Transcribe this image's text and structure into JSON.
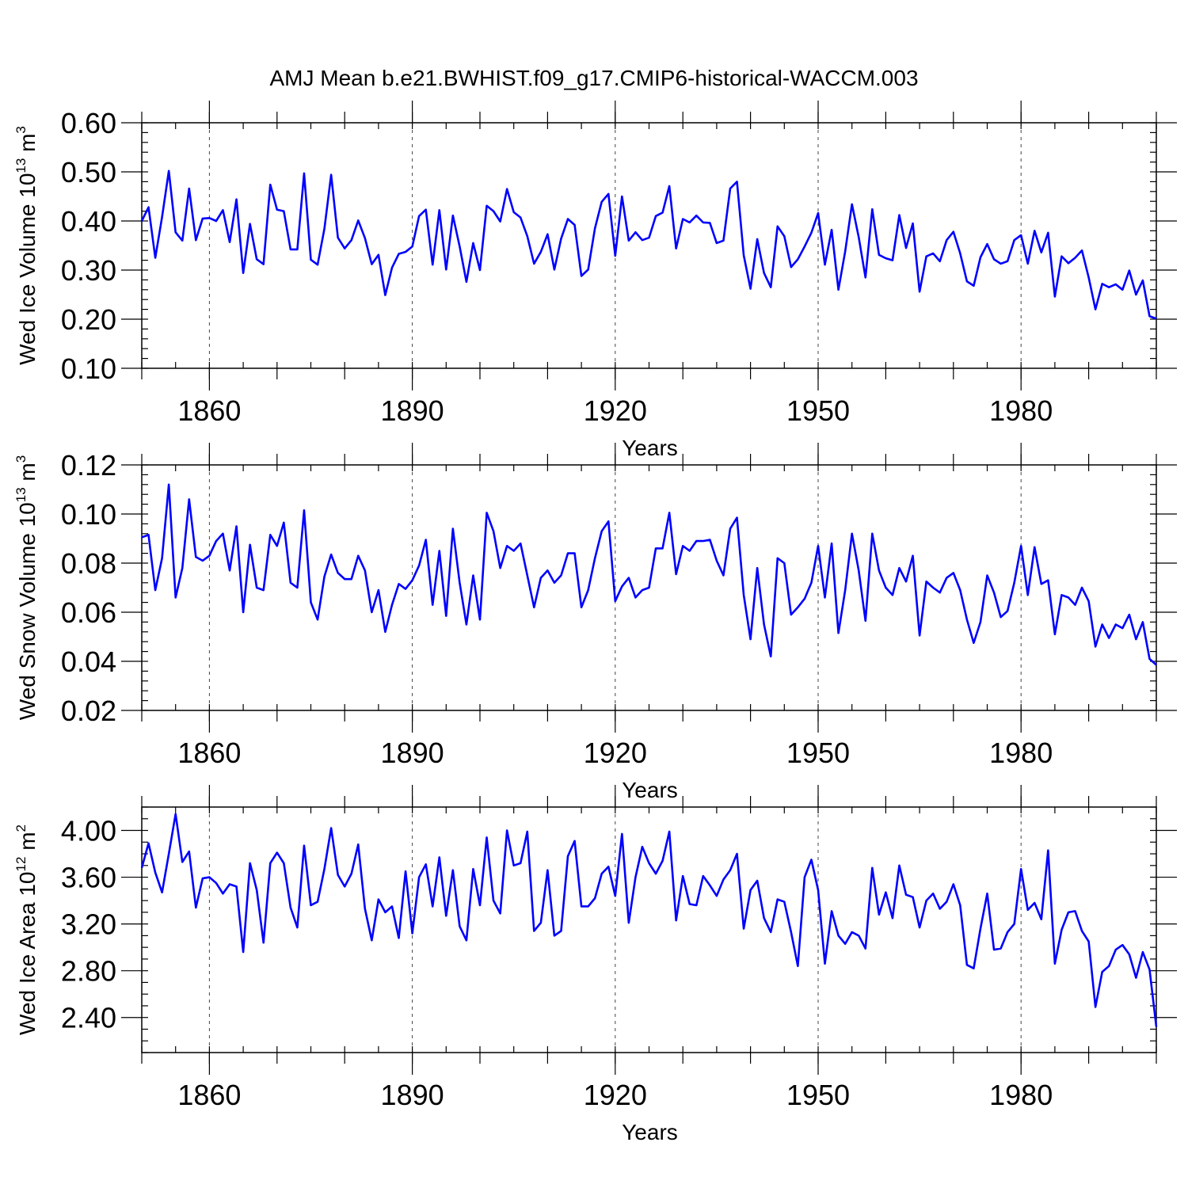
{
  "title": "AMJ Mean b.e21.BWHIST.f09_g17.CMIP6-historical-WACCM.003",
  "colors": {
    "series": "#0000ff",
    "axis": "#000000"
  },
  "chart_data": [
    {
      "type": "line",
      "title": "AMJ Mean b.e21.BWHIST.f09_g17.CMIP6-historical-WACCM.003",
      "xlabel": "Years",
      "ylabel_main": "Wed Ice Volume 10",
      "ylabel_exp": "13",
      "ylabel_unit": " m",
      "ylabel_unit_exp": "3",
      "xlim": [
        1850,
        2000
      ],
      "ylim": [
        0.1,
        0.6
      ],
      "x_ticks": [
        1860,
        1890,
        1920,
        1950,
        1980
      ],
      "y_ticks": [
        "0.10",
        "0.20",
        "0.30",
        "0.40",
        "0.50",
        "0.60"
      ],
      "y_tick_values": [
        0.1,
        0.2,
        0.3,
        0.4,
        0.5,
        0.6
      ],
      "y_minor_step": 0.02,
      "grid": "dashed verticals at major x ticks",
      "x_start": 1850,
      "series": [
        {
          "name": "Wed Ice Volume",
          "values": [
            0.4,
            0.428,
            0.325,
            0.408,
            0.502,
            0.377,
            0.36,
            0.466,
            0.361,
            0.405,
            0.406,
            0.4,
            0.422,
            0.357,
            0.444,
            0.294,
            0.394,
            0.322,
            0.312,
            0.474,
            0.423,
            0.42,
            0.342,
            0.342,
            0.497,
            0.321,
            0.311,
            0.384,
            0.494,
            0.366,
            0.344,
            0.361,
            0.401,
            0.365,
            0.312,
            0.331,
            0.249,
            0.305,
            0.333,
            0.337,
            0.348,
            0.41,
            0.423,
            0.311,
            0.422,
            0.301,
            0.411,
            0.348,
            0.276,
            0.355,
            0.3,
            0.431,
            0.42,
            0.399,
            0.465,
            0.418,
            0.407,
            0.369,
            0.313,
            0.337,
            0.373,
            0.301,
            0.364,
            0.404,
            0.392,
            0.288,
            0.301,
            0.385,
            0.439,
            0.455,
            0.329,
            0.45,
            0.36,
            0.377,
            0.361,
            0.366,
            0.41,
            0.417,
            0.471,
            0.344,
            0.404,
            0.397,
            0.411,
            0.397,
            0.396,
            0.355,
            0.36,
            0.466,
            0.48,
            0.33,
            0.262,
            0.363,
            0.294,
            0.265,
            0.389,
            0.369,
            0.306,
            0.322,
            0.348,
            0.376,
            0.416,
            0.311,
            0.382,
            0.26,
            0.338,
            0.434,
            0.367,
            0.285,
            0.424,
            0.331,
            0.324,
            0.32,
            0.412,
            0.345,
            0.395,
            0.256,
            0.328,
            0.334,
            0.318,
            0.361,
            0.378,
            0.334,
            0.277,
            0.268,
            0.326,
            0.353,
            0.322,
            0.313,
            0.318,
            0.361,
            0.371,
            0.313,
            0.38,
            0.336,
            0.376,
            0.246,
            0.328,
            0.314,
            0.325,
            0.34,
            0.285,
            0.22,
            0.272,
            0.265,
            0.271,
            0.26,
            0.299,
            0.25,
            0.279,
            0.206,
            0.201
          ]
        }
      ]
    },
    {
      "type": "line",
      "xlabel": "Years",
      "ylabel_main": "Wed Snow Volume 10",
      "ylabel_exp": "13",
      "ylabel_unit": " m",
      "ylabel_unit_exp": "3",
      "xlim": [
        1850,
        2000
      ],
      "ylim": [
        0.02,
        0.12
      ],
      "x_ticks": [
        1860,
        1890,
        1920,
        1950,
        1980
      ],
      "y_ticks": [
        "0.02",
        "0.04",
        "0.06",
        "0.08",
        "0.10",
        "0.12"
      ],
      "y_tick_values": [
        0.02,
        0.04,
        0.06,
        0.08,
        0.1,
        0.12
      ],
      "y_minor_step": 0.004,
      "grid": "dashed verticals at major x ticks",
      "x_start": 1850,
      "series": [
        {
          "name": "Wed Snow Volume",
          "values": [
            0.0905,
            0.0915,
            0.069,
            0.082,
            0.112,
            0.066,
            0.078,
            0.106,
            0.0825,
            0.081,
            0.083,
            0.089,
            0.092,
            0.077,
            0.095,
            0.06,
            0.0875,
            0.07,
            0.069,
            0.0915,
            0.087,
            0.0965,
            0.072,
            0.07,
            0.1015,
            0.064,
            0.057,
            0.0745,
            0.0835,
            0.076,
            0.0735,
            0.0735,
            0.083,
            0.077,
            0.06,
            0.069,
            0.052,
            0.063,
            0.0715,
            0.0695,
            0.073,
            0.079,
            0.0895,
            0.063,
            0.085,
            0.0585,
            0.094,
            0.072,
            0.055,
            0.075,
            0.057,
            0.1005,
            0.093,
            0.078,
            0.087,
            0.085,
            0.088,
            0.075,
            0.062,
            0.074,
            0.077,
            0.072,
            0.075,
            0.084,
            0.084,
            0.062,
            0.069,
            0.082,
            0.093,
            0.097,
            0.0645,
            0.0705,
            0.074,
            0.066,
            0.069,
            0.07,
            0.086,
            0.086,
            0.1005,
            0.0755,
            0.087,
            0.085,
            0.089,
            0.089,
            0.0895,
            0.081,
            0.075,
            0.094,
            0.0985,
            0.067,
            0.049,
            0.078,
            0.055,
            0.042,
            0.082,
            0.08,
            0.059,
            0.062,
            0.0655,
            0.072,
            0.087,
            0.066,
            0.088,
            0.0515,
            0.069,
            0.092,
            0.077,
            0.0565,
            0.092,
            0.077,
            0.07,
            0.067,
            0.078,
            0.0725,
            0.083,
            0.0505,
            0.0725,
            0.07,
            0.068,
            0.074,
            0.076,
            0.069,
            0.057,
            0.0475,
            0.056,
            0.075,
            0.068,
            0.058,
            0.0605,
            0.072,
            0.087,
            0.067,
            0.0865,
            0.0715,
            0.073,
            0.051,
            0.067,
            0.066,
            0.063,
            0.07,
            0.0645,
            0.046,
            0.055,
            0.0495,
            0.055,
            0.0535,
            0.059,
            0.049,
            0.056,
            0.041,
            0.0385
          ]
        }
      ]
    },
    {
      "type": "line",
      "xlabel": "Years",
      "ylabel_main": "Wed Ice Area 10",
      "ylabel_exp": "12",
      "ylabel_unit": " m",
      "ylabel_unit_exp": "2",
      "xlim": [
        1850,
        2000
      ],
      "ylim": [
        2.1,
        4.2
      ],
      "x_ticks": [
        1860,
        1890,
        1920,
        1950,
        1980
      ],
      "y_ticks": [
        "2.40",
        "2.80",
        "3.20",
        "3.60",
        "4.00"
      ],
      "y_tick_values": [
        2.4,
        2.8,
        3.2,
        3.6,
        4.0
      ],
      "y_minor_step": 0.1,
      "grid": "dashed verticals at major x ticks",
      "x_start": 1850,
      "series": [
        {
          "name": "Wed Ice Area",
          "values": [
            3.68,
            3.89,
            3.64,
            3.47,
            3.8,
            4.14,
            3.73,
            3.82,
            3.34,
            3.59,
            3.6,
            3.55,
            3.46,
            3.54,
            3.52,
            2.96,
            3.72,
            3.49,
            3.04,
            3.72,
            3.81,
            3.72,
            3.34,
            3.17,
            3.87,
            3.36,
            3.39,
            3.67,
            4.02,
            3.62,
            3.52,
            3.63,
            3.88,
            3.33,
            3.06,
            3.41,
            3.3,
            3.35,
            3.08,
            3.65,
            3.12,
            3.6,
            3.71,
            3.35,
            3.77,
            3.27,
            3.66,
            3.18,
            3.06,
            3.67,
            3.36,
            3.94,
            3.4,
            3.29,
            4.0,
            3.7,
            3.72,
            3.99,
            3.14,
            3.21,
            3.66,
            3.1,
            3.14,
            3.78,
            3.91,
            3.35,
            3.35,
            3.42,
            3.63,
            3.69,
            3.44,
            3.97,
            3.21,
            3.6,
            3.86,
            3.72,
            3.63,
            3.74,
            3.99,
            3.23,
            3.61,
            3.37,
            3.36,
            3.61,
            3.53,
            3.44,
            3.58,
            3.66,
            3.8,
            3.16,
            3.49,
            3.57,
            3.25,
            3.13,
            3.41,
            3.39,
            3.13,
            2.84,
            3.6,
            3.75,
            3.49,
            2.86,
            3.31,
            3.1,
            3.03,
            3.13,
            3.1,
            2.99,
            3.68,
            3.28,
            3.47,
            3.25,
            3.7,
            3.45,
            3.43,
            3.17,
            3.4,
            3.46,
            3.33,
            3.39,
            3.54,
            3.36,
            2.85,
            2.82,
            3.16,
            3.46,
            2.98,
            2.99,
            3.13,
            3.2,
            3.67,
            3.32,
            3.38,
            3.24,
            3.83,
            2.86,
            3.15,
            3.3,
            3.31,
            3.14,
            3.05,
            2.49,
            2.79,
            2.84,
            2.98,
            3.02,
            2.94,
            2.74,
            2.96,
            2.81,
            2.32
          ]
        }
      ]
    }
  ]
}
